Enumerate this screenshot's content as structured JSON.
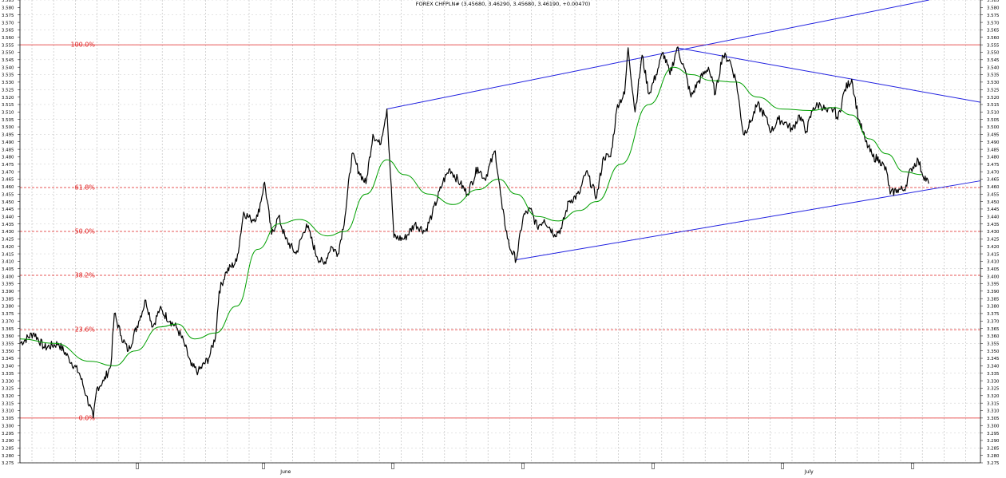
{
  "chart_data": {
    "type": "line",
    "title": "FOREX CHFPLN# (3.45680, 3.46290, 3.45680, 3.46190, +0.00470)",
    "ylim": [
      3.275,
      3.585
    ],
    "y_tick_step": 0.005,
    "grid": true,
    "x_tick_labels": [
      {
        "label": "June",
        "bar": 75
      },
      {
        "label": "July",
        "bar": 225
      }
    ],
    "fibonacci": [
      {
        "label": "100.0%",
        "value": 3.555,
        "style": "solid"
      },
      {
        "label": "61.8%",
        "value": 3.4594,
        "style": "dashed"
      },
      {
        "label": "50.0%",
        "value": 3.43,
        "style": "dashed"
      },
      {
        "label": "38.2%",
        "value": 3.4006,
        "style": "dashed"
      },
      {
        "label": "23.6%",
        "value": 3.3642,
        "style": "dashed"
      },
      {
        "label": "0.0%",
        "value": 3.305,
        "style": "solid"
      }
    ],
    "trendlines": [
      {
        "from": {
          "bar": 105,
          "value": 3.512
        },
        "to": {
          "bar": 190,
          "value": 3.552
        },
        "extend": "right"
      },
      {
        "from": {
          "bar": 142,
          "value": 3.411
        },
        "to": {
          "bar": 260,
          "value": 3.458
        },
        "extend": "right"
      },
      {
        "from": {
          "bar": 188,
          "value": 3.553
        },
        "to": {
          "bar": 238,
          "value": 3.532
        },
        "extend": "right"
      }
    ],
    "price_anchors": [
      [
        0,
        3.355
      ],
      [
        4,
        3.362
      ],
      [
        7,
        3.352
      ],
      [
        11,
        3.355
      ],
      [
        14,
        3.345
      ],
      [
        17,
        3.335
      ],
      [
        19,
        3.32
      ],
      [
        21,
        3.305
      ],
      [
        22,
        3.325
      ],
      [
        24,
        3.33
      ],
      [
        26,
        3.34
      ],
      [
        27,
        3.375
      ],
      [
        29,
        3.36
      ],
      [
        31,
        3.35
      ],
      [
        34,
        3.37
      ],
      [
        36,
        3.384
      ],
      [
        38,
        3.366
      ],
      [
        40,
        3.378
      ],
      [
        43,
        3.37
      ],
      [
        45,
        3.365
      ],
      [
        47,
        3.355
      ],
      [
        49,
        3.34
      ],
      [
        51,
        3.336
      ],
      [
        54,
        3.345
      ],
      [
        56,
        3.36
      ],
      [
        57,
        3.39
      ],
      [
        59,
        3.403
      ],
      [
        62,
        3.41
      ],
      [
        64,
        3.443
      ],
      [
        66,
        3.438
      ],
      [
        68,
        3.44
      ],
      [
        70,
        3.463
      ],
      [
        72,
        3.428
      ],
      [
        74,
        3.44
      ],
      [
        76,
        3.425
      ],
      [
        79,
        3.415
      ],
      [
        82,
        3.435
      ],
      [
        85,
        3.413
      ],
      [
        87,
        3.408
      ],
      [
        89,
        3.42
      ],
      [
        91,
        3.415
      ],
      [
        93,
        3.44
      ],
      [
        95,
        3.482
      ],
      [
        97,
        3.47
      ],
      [
        99,
        3.462
      ],
      [
        101,
        3.495
      ],
      [
        103,
        3.488
      ],
      [
        105,
        3.512
      ],
      [
        107,
        3.426
      ],
      [
        110,
        3.425
      ],
      [
        113,
        3.435
      ],
      [
        116,
        3.43
      ],
      [
        118,
        3.442
      ],
      [
        121,
        3.463
      ],
      [
        123,
        3.472
      ],
      [
        126,
        3.462
      ],
      [
        128,
        3.455
      ],
      [
        131,
        3.473
      ],
      [
        133,
        3.465
      ],
      [
        136,
        3.484
      ],
      [
        138,
        3.445
      ],
      [
        140,
        3.42
      ],
      [
        142,
        3.411
      ],
      [
        144,
        3.44
      ],
      [
        146,
        3.445
      ],
      [
        148,
        3.433
      ],
      [
        150,
        3.438
      ],
      [
        153,
        3.428
      ],
      [
        155,
        3.432
      ],
      [
        157,
        3.45
      ],
      [
        160,
        3.455
      ],
      [
        162,
        3.47
      ],
      [
        165,
        3.453
      ],
      [
        167,
        3.48
      ],
      [
        169,
        3.48
      ],
      [
        171,
        3.515
      ],
      [
        173,
        3.522
      ],
      [
        174,
        3.553
      ],
      [
        176,
        3.51
      ],
      [
        178,
        3.548
      ],
      [
        180,
        3.522
      ],
      [
        182,
        3.535
      ],
      [
        184,
        3.55
      ],
      [
        186,
        3.535
      ],
      [
        188,
        3.553
      ],
      [
        190,
        3.54
      ],
      [
        192,
        3.52
      ],
      [
        194,
        3.53
      ],
      [
        197,
        3.54
      ],
      [
        199,
        3.522
      ],
      [
        201,
        3.548
      ],
      [
        203,
        3.545
      ],
      [
        205,
        3.53
      ],
      [
        207,
        3.495
      ],
      [
        209,
        3.503
      ],
      [
        211,
        3.515
      ],
      [
        213,
        3.508
      ],
      [
        215,
        3.497
      ],
      [
        217,
        3.505
      ],
      [
        219,
        3.503
      ],
      [
        221,
        3.498
      ],
      [
        223,
        3.508
      ],
      [
        225,
        3.497
      ],
      [
        227,
        3.513
      ],
      [
        229,
        3.515
      ],
      [
        231,
        3.51
      ],
      [
        233,
        3.512
      ],
      [
        234,
        3.505
      ],
      [
        236,
        3.525
      ],
      [
        238,
        3.532
      ],
      [
        240,
        3.505
      ],
      [
        242,
        3.49
      ],
      [
        244,
        3.48
      ],
      [
        246,
        3.478
      ],
      [
        248,
        3.47
      ],
      [
        249,
        3.455
      ],
      [
        251,
        3.458
      ],
      [
        253,
        3.458
      ],
      [
        255,
        3.472
      ],
      [
        257,
        3.478
      ],
      [
        258,
        3.47
      ],
      [
        260,
        3.462
      ]
    ],
    "ma_anchors": [
      [
        0,
        3.358
      ],
      [
        10,
        3.355
      ],
      [
        20,
        3.343
      ],
      [
        27,
        3.34
      ],
      [
        33,
        3.35
      ],
      [
        40,
        3.366
      ],
      [
        45,
        3.368
      ],
      [
        50,
        3.358
      ],
      [
        56,
        3.362
      ],
      [
        62,
        3.38
      ],
      [
        68,
        3.418
      ],
      [
        74,
        3.435
      ],
      [
        80,
        3.438
      ],
      [
        88,
        3.427
      ],
      [
        93,
        3.43
      ],
      [
        99,
        3.455
      ],
      [
        105,
        3.478
      ],
      [
        110,
        3.468
      ],
      [
        117,
        3.455
      ],
      [
        124,
        3.448
      ],
      [
        131,
        3.458
      ],
      [
        137,
        3.465
      ],
      [
        142,
        3.455
      ],
      [
        148,
        3.44
      ],
      [
        154,
        3.437
      ],
      [
        160,
        3.444
      ],
      [
        165,
        3.45
      ],
      [
        172,
        3.475
      ],
      [
        180,
        3.515
      ],
      [
        187,
        3.54
      ],
      [
        192,
        3.535
      ],
      [
        198,
        3.531
      ],
      [
        205,
        3.53
      ],
      [
        211,
        3.52
      ],
      [
        218,
        3.512
      ],
      [
        226,
        3.511
      ],
      [
        233,
        3.513
      ],
      [
        238,
        3.508
      ],
      [
        243,
        3.492
      ],
      [
        248,
        3.482
      ],
      [
        253,
        3.47
      ],
      [
        258,
        3.468
      ]
    ]
  }
}
